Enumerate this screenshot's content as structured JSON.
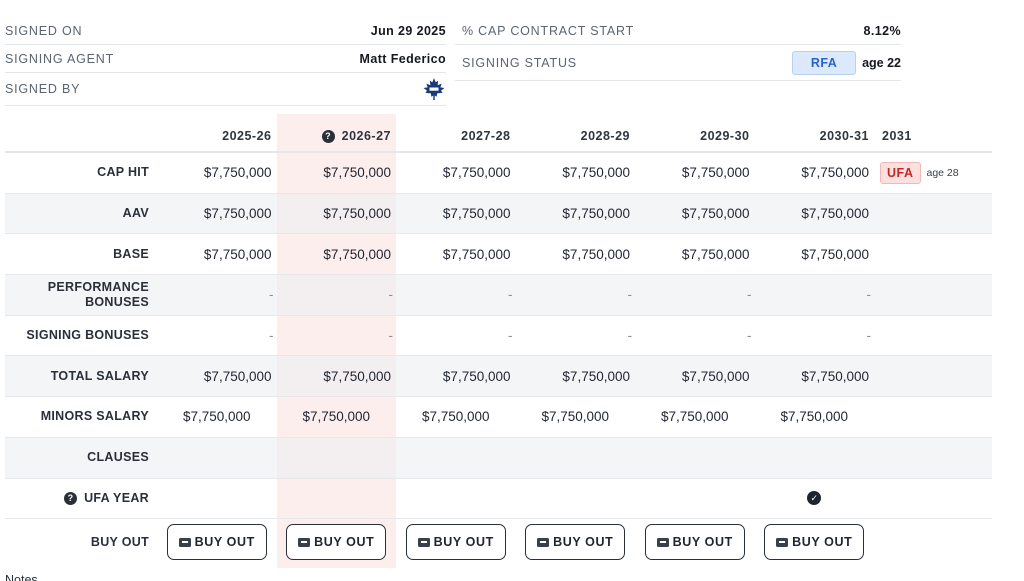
{
  "signing_info": {
    "signed_on_label": "SIGNED ON",
    "signed_on_value": "Jun 29 2025",
    "agent_label": "SIGNING AGENT",
    "agent_value": "Matt Federico",
    "signed_by_label": "SIGNED BY",
    "signed_by_logo": "maple-leaf-logo",
    "cap_start_label": "% CAP CONTRACT START",
    "cap_start_value": "8.12%",
    "status_label": "SIGNING STATUS",
    "status_value": "RFA",
    "status_age": "age 22"
  },
  "table": {
    "seasons": [
      "2025-26",
      "2026-27",
      "2027-28",
      "2028-29",
      "2029-30",
      "2030-31"
    ],
    "tail_header": "2031",
    "highlight_color": "#fdeeee",
    "rows": {
      "cap_hit": {
        "label": "CAP HIT",
        "values": [
          "$7,750,000",
          "$7,750,000",
          "$7,750,000",
          "$7,750,000",
          "$7,750,000",
          "$7,750,000"
        ]
      },
      "aav": {
        "label": "AAV",
        "values": [
          "$7,750,000",
          "$7,750,000",
          "$7,750,000",
          "$7,750,000",
          "$7,750,000",
          "$7,750,000"
        ]
      },
      "base": {
        "label": "BASE",
        "values": [
          "$7,750,000",
          "$7,750,000",
          "$7,750,000",
          "$7,750,000",
          "$7,750,000",
          "$7,750,000"
        ]
      },
      "performance_bonuses": {
        "label_line1": "PERFORMANCE",
        "label_line2": "BONUSES",
        "values": [
          "-",
          "-",
          "-",
          "-",
          "-",
          "-"
        ]
      },
      "signing_bonuses": {
        "label": "SIGNING BONUSES",
        "values": [
          "-",
          "-",
          "-",
          "-",
          "-",
          "-"
        ]
      },
      "total_salary": {
        "label": "TOTAL SALARY",
        "values": [
          "$7,750,000",
          "$7,750,000",
          "$7,750,000",
          "$7,750,000",
          "$7,750,000",
          "$7,750,000"
        ]
      },
      "minors_salary": {
        "label": "MINORS SALARY",
        "values": [
          "$7,750,000",
          "$7,750,000",
          "$7,750,000",
          "$7,750,000",
          "$7,750,000",
          "$7,750,000"
        ]
      },
      "clauses": {
        "label": "CLAUSES"
      },
      "ufa_year": {
        "label": "UFA YEAR",
        "checked_season": "2030-31"
      },
      "buy_out": {
        "label": "BUY OUT",
        "button_label": "BUY OUT"
      }
    },
    "ufa_badge": "UFA",
    "ufa_age": "age 28",
    "status_colors": {
      "rfa": "#2a63c9",
      "ufa": "#c62828"
    }
  },
  "notes_label": "Notes"
}
